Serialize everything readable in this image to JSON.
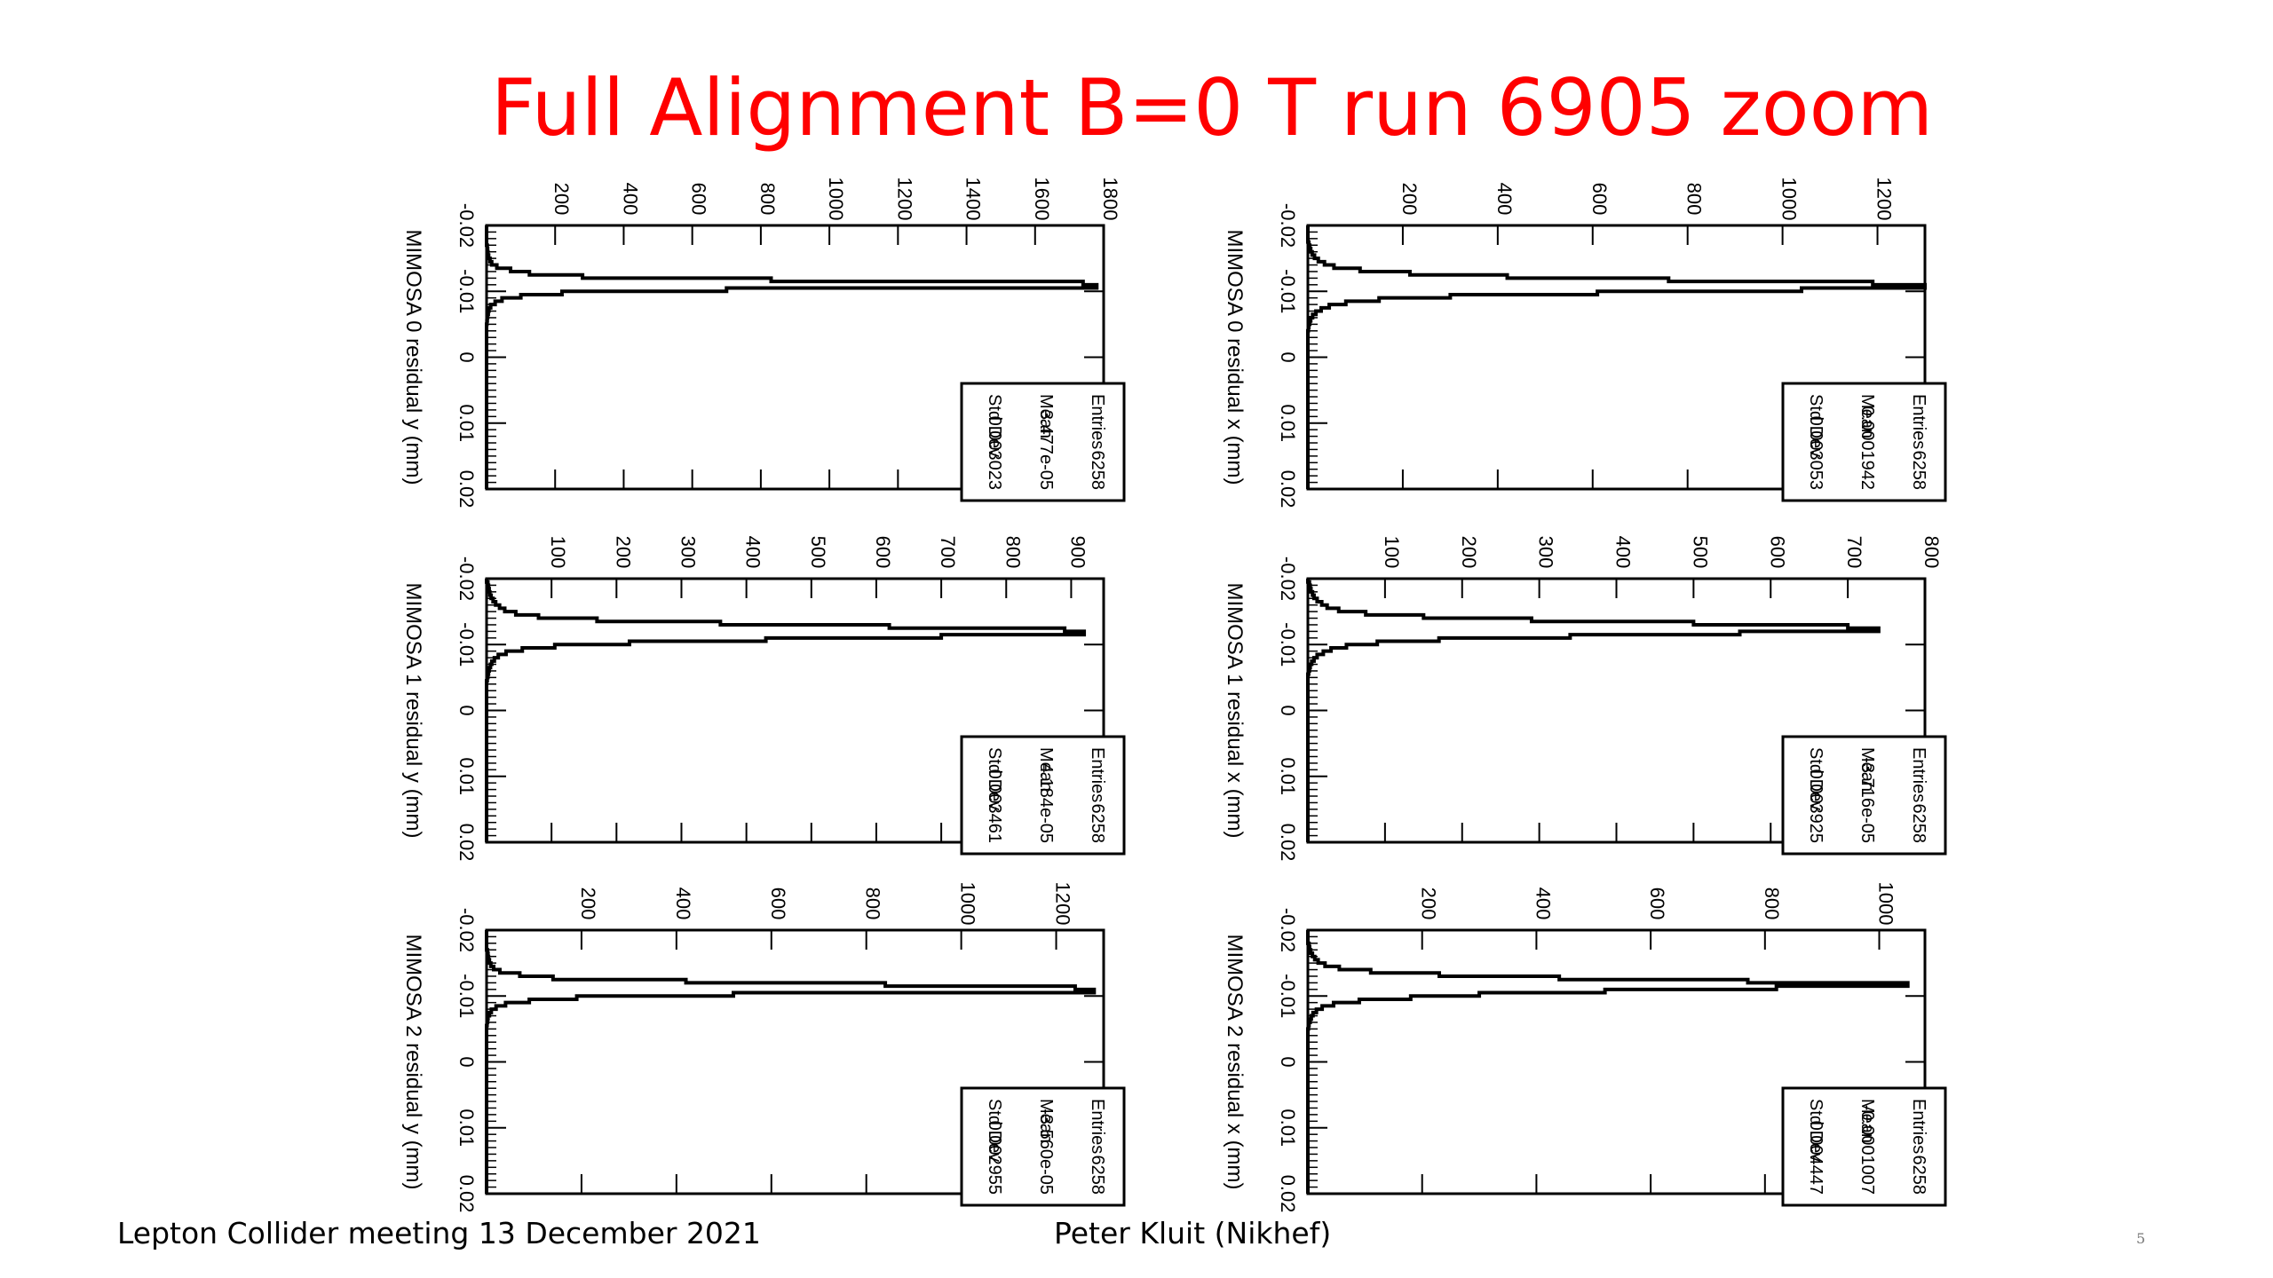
{
  "slide": {
    "title": "Full Alignment B=0 T run 6905 zoom",
    "footer_left": "Lepton Collider meeting 13 December 2021",
    "footer_mid": "Peter Kluit (Nikhef)",
    "page_number": "5"
  },
  "colors": {
    "title": "#ff0000",
    "line": "#000000"
  },
  "chart_data": [
    {
      "type": "bar",
      "histogram": true,
      "orientation": "rotated-90",
      "grid_position": "top-left",
      "xlabel": "MIMOSA 0 residual y (mm)",
      "ylabel": "",
      "xlim": [
        -0.02,
        0.02
      ],
      "ylim": [
        0,
        1800
      ],
      "xticks": [
        "-0.02",
        "-0.01",
        "0",
        "0.01",
        "0.02"
      ],
      "yticks": [
        "200",
        "400",
        "600",
        "800",
        "1000",
        "1200",
        "1400",
        "1600",
        "1800"
      ],
      "grid": false,
      "stats": {
        "Entries": "6258",
        "Mean": "3.477e-05",
        "Std Dev": "0.003023"
      },
      "bin_width": 0.0005,
      "values": [
        0,
        0,
        0,
        0,
        0,
        0,
        2,
        3,
        4,
        6,
        10,
        15,
        30,
        70,
        125,
        280,
        830,
        1740,
        1780,
        700,
        220,
        100,
        45,
        25,
        12,
        7,
        5,
        3,
        2,
        1,
        0,
        0,
        0,
        0,
        0,
        0,
        0,
        0,
        0,
        0,
        0,
        0,
        0,
        0,
        0,
        0,
        0,
        0,
        0,
        0,
        0,
        0,
        0,
        0,
        0,
        0,
        0,
        0,
        0,
        0,
        0,
        0,
        0,
        0,
        0,
        0,
        0,
        0,
        0,
        0,
        0,
        0,
        0,
        0,
        0,
        0,
        0,
        0,
        0,
        0
      ]
    },
    {
      "type": "bar",
      "histogram": true,
      "orientation": "rotated-90",
      "grid_position": "top-right",
      "xlabel": "MIMOSA 0 residual x (mm)",
      "ylabel": "",
      "xlim": [
        -0.02,
        0.02
      ],
      "ylim": [
        0,
        1300
      ],
      "xticks": [
        "-0.02",
        "-0.01",
        "0",
        "0.01",
        "0.02"
      ],
      "yticks": [
        "200",
        "400",
        "600",
        "800",
        "1000",
        "1200"
      ],
      "grid": false,
      "stats": {
        "Entries": "6258",
        "Mean": "0.0001942",
        "Std Dev": "0.003053"
      },
      "bin_width": 0.0005,
      "values": [
        0,
        0,
        0,
        0,
        0,
        2,
        4,
        6,
        9,
        14,
        22,
        35,
        55,
        110,
        215,
        420,
        760,
        1190,
        1310,
        1040,
        610,
        300,
        150,
        80,
        45,
        28,
        17,
        10,
        6,
        4,
        2,
        1,
        0,
        0,
        0,
        0,
        0,
        0,
        0,
        0,
        0,
        0,
        0,
        0,
        0,
        0,
        0,
        0,
        0,
        0,
        0,
        0,
        0,
        0,
        0,
        0,
        0,
        0,
        0,
        0,
        0,
        0,
        0,
        0,
        0,
        0,
        0,
        0,
        0,
        0,
        0,
        0,
        0,
        0,
        0,
        0,
        0,
        0,
        0,
        0
      ]
    },
    {
      "type": "bar",
      "histogram": true,
      "orientation": "rotated-90",
      "grid_position": "middle-left",
      "xlabel": "MIMOSA 1 residual y (mm)",
      "ylabel": "",
      "xlim": [
        -0.02,
        0.02
      ],
      "ylim": [
        0,
        950
      ],
      "xticks": [
        "-0.02",
        "-0.01",
        "0",
        "0.01",
        "0.02"
      ],
      "yticks": [
        "100",
        "200",
        "300",
        "400",
        "500",
        "600",
        "700",
        "800",
        "900"
      ],
      "grid": false,
      "stats": {
        "Entries": "6258",
        "Mean": "4.184e-05",
        "Std Dev": "0.003461"
      },
      "bin_width": 0.0005,
      "values": [
        0,
        2,
        3,
        4,
        5,
        7,
        10,
        14,
        20,
        28,
        45,
        80,
        170,
        360,
        620,
        890,
        920,
        700,
        430,
        220,
        105,
        55,
        30,
        18,
        12,
        8,
        6,
        4,
        3,
        2,
        1,
        0,
        0,
        0,
        0,
        0,
        0,
        0,
        0,
        0,
        0,
        0,
        0,
        0,
        0,
        0,
        0,
        0,
        0,
        0,
        0,
        0,
        0,
        0,
        0,
        0,
        0,
        0,
        0,
        0,
        0,
        0,
        0,
        0,
        0,
        0,
        0,
        0,
        0,
        0,
        0,
        0,
        0,
        0,
        0,
        0,
        0,
        0,
        0,
        0,
        0
      ]
    },
    {
      "type": "bar",
      "histogram": true,
      "orientation": "rotated-90",
      "grid_position": "middle-right",
      "xlabel": "MIMOSA 1 residual x (mm)",
      "ylabel": "",
      "xlim": [
        -0.02,
        0.02
      ],
      "ylim": [
        0,
        800
      ],
      "xticks": [
        "-0.02",
        "-0.01",
        "0",
        "0.01",
        "0.02"
      ],
      "yticks": [
        "100",
        "200",
        "300",
        "400",
        "500",
        "600",
        "700",
        "800"
      ],
      "grid": false,
      "stats": {
        "Entries": "6258",
        "Mean": "-3.716e-05",
        "Std Dev": "0.003925"
      },
      "bin_width": 0.0005,
      "values": [
        0,
        2,
        3,
        4,
        6,
        8,
        12,
        18,
        25,
        40,
        75,
        150,
        290,
        500,
        700,
        740,
        560,
        340,
        170,
        90,
        50,
        30,
        20,
        12,
        8,
        5,
        3,
        2,
        1,
        0,
        0,
        0,
        0,
        0,
        0,
        0,
        0,
        0,
        0,
        0,
        0,
        0,
        0,
        0,
        0,
        0,
        0,
        0,
        0,
        0,
        0,
        0,
        0,
        0,
        0,
        0,
        0,
        0,
        0,
        0,
        0,
        0,
        0,
        0,
        0,
        0,
        0,
        0,
        0,
        0,
        0,
        0,
        0,
        0,
        0,
        0,
        0,
        0,
        0,
        0,
        0
      ]
    },
    {
      "type": "bar",
      "histogram": true,
      "orientation": "rotated-90",
      "grid_position": "bottom-left",
      "xlabel": "MIMOSA 2 residual y (mm)",
      "ylabel": "",
      "xlim": [
        -0.02,
        0.02
      ],
      "ylim": [
        0,
        1300
      ],
      "xticks": [
        "-0.02",
        "-0.01",
        "0",
        "0.01",
        "0.02"
      ],
      "yticks": [
        "200",
        "400",
        "600",
        "800",
        "1000",
        "1200"
      ],
      "grid": false,
      "stats": {
        "Entries": "6258",
        "Mean": "-3.560e-05",
        "Std Dev": "0.002955"
      },
      "bin_width": 0.0005,
      "values": [
        0,
        0,
        0,
        0,
        0,
        0,
        2,
        3,
        4,
        6,
        9,
        15,
        28,
        70,
        140,
        420,
        840,
        1240,
        1280,
        520,
        190,
        90,
        40,
        20,
        10,
        6,
        3,
        2,
        1,
        0,
        0,
        0,
        0,
        0,
        0,
        0,
        0,
        0,
        0,
        0,
        0,
        0,
        0,
        0,
        0,
        0,
        0,
        0,
        0,
        0,
        0,
        0,
        0,
        0,
        0,
        0,
        0,
        0,
        0,
        0,
        0,
        0,
        0,
        0,
        0,
        0,
        0,
        0,
        0,
        0,
        0,
        0,
        0,
        0,
        0,
        0,
        0,
        0,
        0,
        0
      ]
    },
    {
      "type": "bar",
      "histogram": true,
      "orientation": "rotated-90",
      "grid_position": "bottom-right",
      "xlabel": "MIMOSA 2 residual x (mm)",
      "ylabel": "",
      "xlim": [
        -0.02,
        0.02
      ],
      "ylim": [
        0,
        1080
      ],
      "xticks": [
        "-0.02",
        "-0.01",
        "0",
        "0.01",
        "0.02"
      ],
      "yticks": [
        "200",
        "400",
        "600",
        "800",
        "1000"
      ],
      "grid": false,
      "stats": {
        "Entries": "6258",
        "Mean": "-0.0001007",
        "Std Dev": "0.004447"
      },
      "bin_width": 0.0005,
      "values": [
        0,
        0,
        0,
        0,
        2,
        3,
        5,
        8,
        12,
        18,
        30,
        55,
        110,
        230,
        440,
        770,
        1050,
        820,
        520,
        300,
        180,
        90,
        45,
        25,
        15,
        9,
        6,
        4,
        2,
        1,
        0,
        0,
        0,
        0,
        0,
        0,
        0,
        0,
        0,
        0,
        0,
        0,
        0,
        0,
        0,
        0,
        0,
        0,
        0,
        0,
        0,
        0,
        0,
        0,
        0,
        0,
        0,
        0,
        0,
        0,
        0,
        0,
        0,
        0,
        0,
        0,
        0,
        0,
        0,
        0,
        0,
        0,
        0,
        0,
        0,
        0,
        0,
        0,
        0,
        0,
        0
      ]
    }
  ]
}
